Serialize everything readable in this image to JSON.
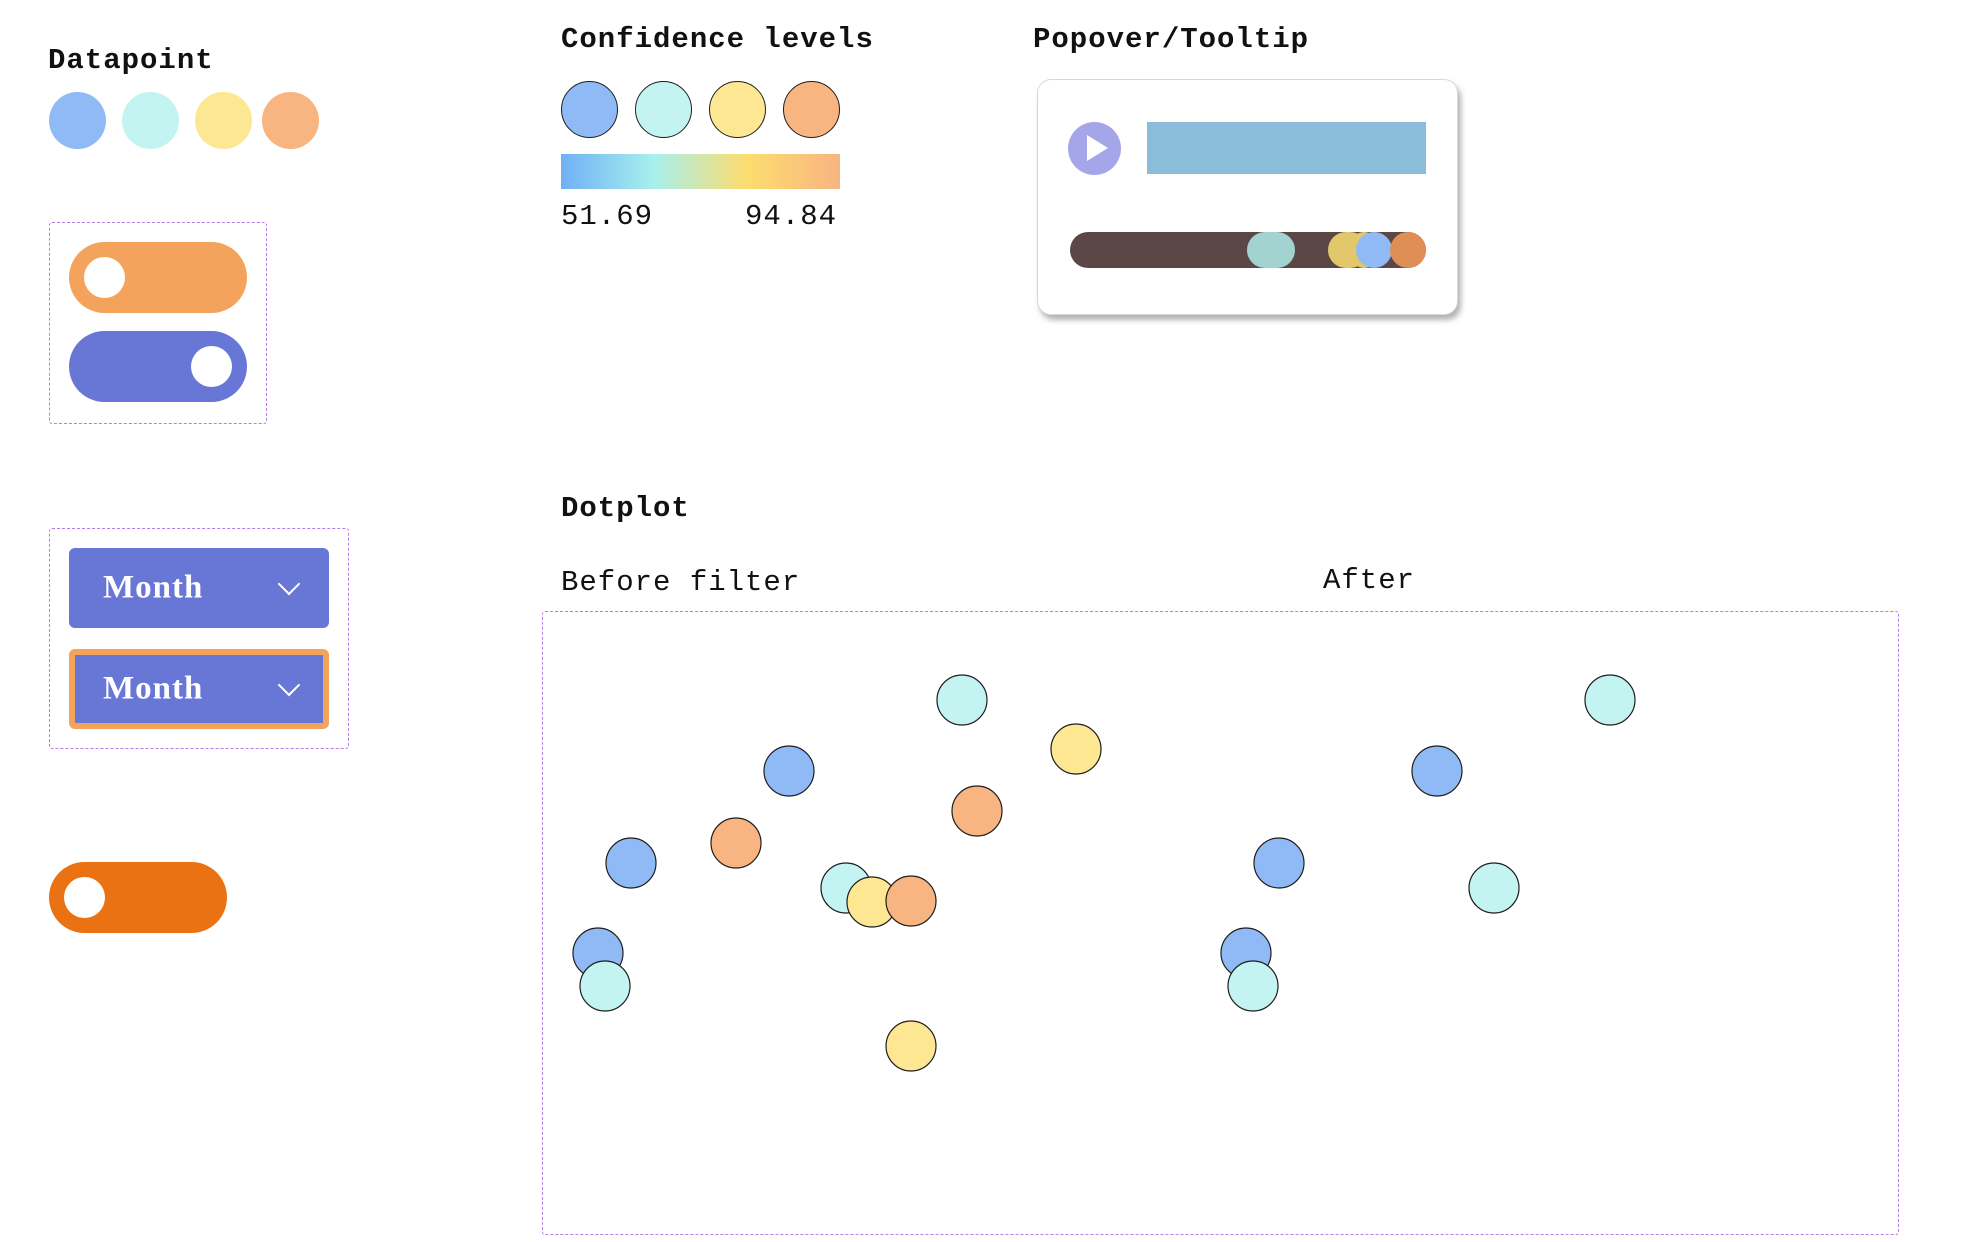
{
  "datapoint": {
    "title": "Datapoint",
    "swatches": [
      "#8fbaf5",
      "#c3f4f1",
      "#fee792",
      "#f8b481"
    ]
  },
  "toggles": [
    {
      "state": "off",
      "track_color": "#f4a35d"
    },
    {
      "state": "on",
      "track_color": "#6876d6"
    },
    {
      "state": "off",
      "track_color": "#ea7212"
    }
  ],
  "selects": [
    {
      "value": "Month",
      "focused": false
    },
    {
      "value": "Month",
      "focused": true
    }
  ],
  "confidence": {
    "title": "Confidence levels",
    "colors": [
      "#8fbaf5",
      "#c3f4f1",
      "#fee792",
      "#f8b481"
    ],
    "gradient": [
      "#6fb0f4",
      "#a8f0ee",
      "#fddd6e",
      "#f8b481"
    ],
    "min_label": "51.69",
    "max_label": "94.84"
  },
  "popover": {
    "title": "Popover/Tooltip",
    "play_icon": "play-icon",
    "play_color": "#a5a6ea",
    "bar_color": "#8bbcda",
    "track_color": "#5c4747",
    "marker_colors": [
      "#a3d3d1",
      "#e3c76b",
      "#e3c76b",
      "#8fbaf5",
      "#df8f56"
    ]
  },
  "dotplot": {
    "title": "Dotplot",
    "before_label": "Before filter",
    "after_label": "After",
    "colors": {
      "blue": "#8fbaf5",
      "cyan": "#c3f4f1",
      "yellow": "#fee792",
      "orange": "#f8b481"
    }
  }
}
